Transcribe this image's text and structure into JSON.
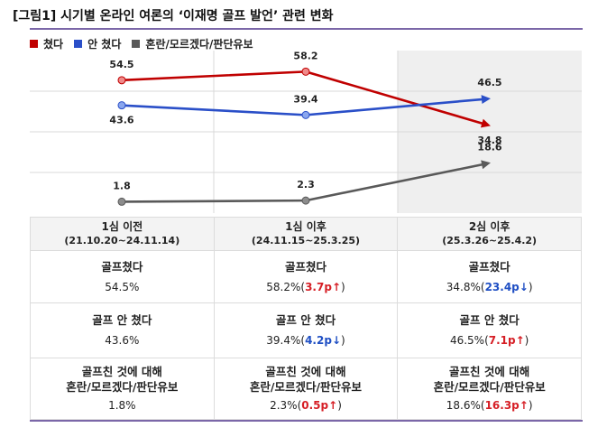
{
  "title": "[그림1] 시기별 온라인 여론의 ‘이재명 골프 발언’ 관련 변화",
  "colors": {
    "accent_line": "#7b67a8",
    "red": "#c00000",
    "blue": "#2a4fc8",
    "gray": "#595959",
    "up": "#d61f26",
    "down": "#1f4fc4"
  },
  "legend": [
    {
      "label": "쳤다",
      "color": "#c00000"
    },
    {
      "label": "안 쳤다",
      "color": "#2a4fc8"
    },
    {
      "label": "혼란/모르겠다/판단유보",
      "color": "#595959"
    }
  ],
  "chart_data": {
    "type": "line",
    "categories": [
      "1심 이전",
      "1심 이후",
      "2심 이후"
    ],
    "series": [
      {
        "name": "쳤다",
        "values": [
          54.5,
          58.2,
          34.8
        ],
        "labels": [
          "54.5",
          "58.2",
          "34.8"
        ]
      },
      {
        "name": "안 쳤다",
        "values": [
          43.6,
          39.4,
          46.5
        ],
        "labels": [
          "43.6",
          "39.4",
          "46.5"
        ]
      },
      {
        "name": "혼란/모르겠다/판단유보",
        "values": [
          1.8,
          2.3,
          18.6
        ],
        "labels": [
          "1.8",
          "2.3",
          "18.6"
        ]
      }
    ],
    "ylim": [
      0,
      65
    ],
    "highlight_category": "2심 이후",
    "grid": true
  },
  "table": {
    "columns": [
      {
        "period": "1심 이전",
        "range": "(21.10.20~24.11.14)"
      },
      {
        "period": "1심 이후",
        "range": "(24.11.15~25.3.25)"
      },
      {
        "period": "2심 이후",
        "range": "(25.3.26~25.4.2)"
      }
    ],
    "rows": [
      {
        "label": "골프쳤다",
        "cells": [
          {
            "value": "54.5%",
            "change": "",
            "dir": "",
            "open": "",
            "close": ""
          },
          {
            "value": "58.2%",
            "change": "3.7p",
            "dir": "up",
            "open": "(",
            "close": ")"
          },
          {
            "value": "34.8%",
            "change": "23.4p",
            "dir": "down",
            "open": "(",
            "close": ")"
          }
        ]
      },
      {
        "label": "골프 안 쳤다",
        "cells": [
          {
            "value": "43.6%",
            "change": "",
            "dir": "",
            "open": "",
            "close": ""
          },
          {
            "value": "39.4%",
            "change": "4.2p",
            "dir": "down",
            "open": "(",
            "close": ")"
          },
          {
            "value": "46.5%",
            "change": "7.1p",
            "dir": "up",
            "open": "(",
            "close": ")"
          }
        ]
      },
      {
        "label": "골프친 것에 대해",
        "label2": "혼란/모르겠다/판단유보",
        "cells": [
          {
            "value": "1.8%",
            "change": "",
            "dir": "",
            "open": "",
            "close": ""
          },
          {
            "value": "2.3%",
            "change": "0.5p",
            "dir": "up",
            "open": "(",
            "close": ")"
          },
          {
            "value": "18.6%",
            "change": "16.3p",
            "dir": "up",
            "open": "(",
            "close": ")"
          }
        ]
      }
    ],
    "arrows": {
      "up": "↑",
      "down": "↓"
    }
  }
}
